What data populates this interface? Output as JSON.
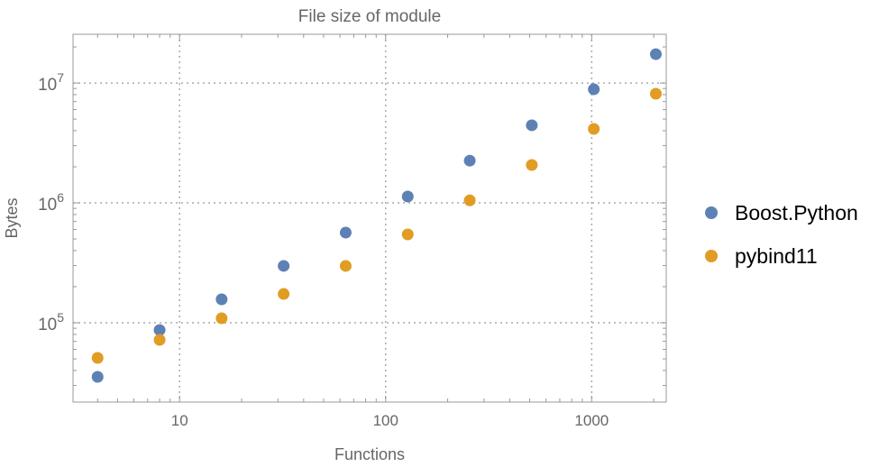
{
  "chart_data": {
    "type": "scatter",
    "title": "File size of module",
    "xlabel": "Functions",
    "ylabel": "Bytes",
    "xscale": "log",
    "yscale": "log",
    "xlim": [
      3.04,
      2300
    ],
    "ylim": [
      21800,
      25500000
    ],
    "grid": true,
    "legend_position": "right",
    "x_ticks": [
      {
        "value": 10,
        "label": "10"
      },
      {
        "value": 100,
        "label": "100"
      },
      {
        "value": 1000,
        "label": "1000"
      }
    ],
    "y_ticks": [
      {
        "value": 100000,
        "base": "10",
        "exp": "5"
      },
      {
        "value": 1000000,
        "base": "10",
        "exp": "6"
      },
      {
        "value": 10000000,
        "base": "10",
        "exp": "7"
      }
    ],
    "x": [
      4,
      8,
      16,
      32,
      64,
      128,
      256,
      512,
      1024,
      2048
    ],
    "series": [
      {
        "name": "Boost.Python",
        "color": "#5E81B5",
        "values": [
          35400,
          87000,
          157000,
          298000,
          565000,
          1130000,
          2250000,
          4440000,
          8860000,
          17400000
        ]
      },
      {
        "name": "pybind11",
        "color": "#E19C24",
        "values": [
          50900,
          72000,
          109000,
          174000,
          298000,
          546000,
          1050000,
          2070000,
          4140000,
          8130000
        ]
      }
    ]
  }
}
